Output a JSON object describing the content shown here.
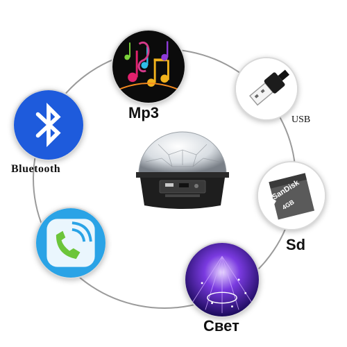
{
  "features": {
    "mp3": {
      "label": "Mp3",
      "icon": "music-notes-icon"
    },
    "usb": {
      "label": "USB",
      "icon": "usb-plug-icon"
    },
    "bluetooth": {
      "label": "Bluetooth",
      "icon": "bluetooth-icon"
    },
    "sd": {
      "label": "Sd",
      "icon": "sd-card-icon",
      "card_brand": "SanDisk",
      "card_capacity": "4GB",
      "card_type": "micro SD"
    },
    "phone": {
      "icon": "phone-call-icon"
    },
    "light": {
      "label": "Свет",
      "icon": "disco-light-icon"
    }
  },
  "colors": {
    "bluetooth_blue": "#1e5bdc",
    "phone_bg": "#2aa3e6",
    "phone_green": "#6cc53a",
    "light_purple": "#3a1a8c"
  }
}
